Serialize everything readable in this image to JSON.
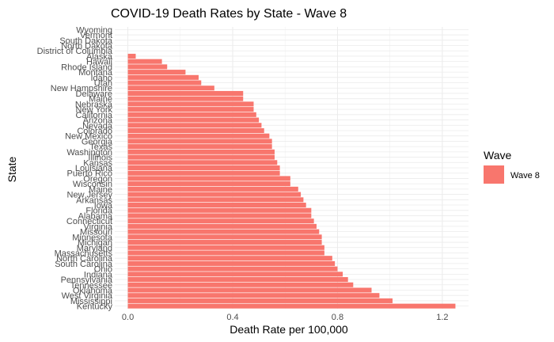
{
  "chart_data": {
    "type": "bar",
    "orientation": "horizontal",
    "title": "COVID-19 Death Rates by State - Wave 8",
    "xlabel": "Death Rate per 100,000",
    "ylabel": "State",
    "xlim": [
      -0.05,
      1.3
    ],
    "xticks": [
      0.0,
      0.4,
      0.8,
      1.2
    ],
    "xtick_labels": [
      "0.0",
      "0.4",
      "0.8",
      "1.2"
    ],
    "grid": true,
    "legend": {
      "title": "Wave",
      "placement": "right",
      "entries": [
        {
          "label": "Wave 8",
          "color": "#F8766D"
        }
      ]
    },
    "bar_color": "#F8766D",
    "categories": [
      "Wyoming",
      "Vermont",
      "South Dakota",
      "North Dakota",
      "District of Columbia",
      "Alaska",
      "Hawaii",
      "Rhode Island",
      "Montana",
      "Idaho",
      "Utah",
      "New Hampshire",
      "Delaware",
      "Maine",
      "Nebraska",
      "New York",
      "California",
      "Arizona",
      "Nevada",
      "Colorado",
      "New Mexico",
      "Georgia",
      "Texas",
      "Washington",
      "Illinois",
      "Kansas",
      "Louisiana",
      "Puerto Rico",
      "Oregon",
      "Wisconsin",
      "Maine",
      "New Jersey",
      "Arkansas",
      "Iowa",
      "Florida",
      "Alabama",
      "Connecticut",
      "Virginia",
      "Missouri",
      "Minnesota",
      "Michigan",
      "Maryland",
      "Massachusetts",
      "North Carolina",
      "South Carolina",
      "Ohio",
      "Indiana",
      "Pennsylvania",
      "Tennessee",
      "Oklahoma",
      "West Virginia",
      "Mississippi",
      "Kentucky"
    ],
    "values": [
      0,
      0,
      0,
      0,
      0,
      0.03,
      0.13,
      0.15,
      0.22,
      0.27,
      0.28,
      0.33,
      0.44,
      0.44,
      0.48,
      0.48,
      0.49,
      0.5,
      0.51,
      0.52,
      0.54,
      0.55,
      0.55,
      0.56,
      0.56,
      0.57,
      0.58,
      0.58,
      0.62,
      0.62,
      0.65,
      0.66,
      0.67,
      0.68,
      0.7,
      0.7,
      0.71,
      0.72,
      0.73,
      0.74,
      0.74,
      0.75,
      0.75,
      0.78,
      0.79,
      0.8,
      0.82,
      0.84,
      0.86,
      0.93,
      0.96,
      1.01,
      1.25
    ]
  }
}
